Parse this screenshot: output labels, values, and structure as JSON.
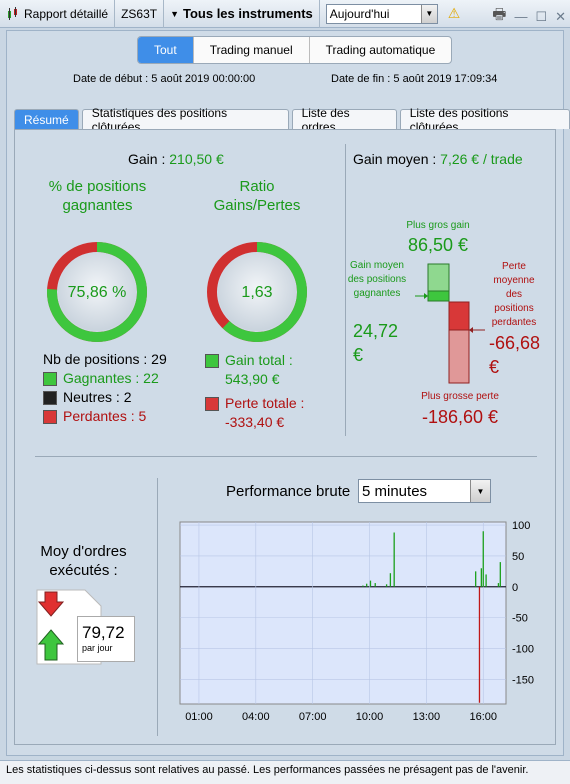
{
  "titlebar": {
    "report_label": "Rapport détaillé",
    "account": "ZS63T",
    "instruments": "Tous les instruments",
    "period_value": "Aujourd'hui"
  },
  "filter": {
    "tabs": [
      "Tout",
      "Trading manuel",
      "Trading automatique"
    ],
    "start_label": "Date de début :",
    "start_value": "5 août 2019 00:00:00",
    "end_label": "Date de fin :",
    "end_value": "5 août 2019 17:09:34"
  },
  "tabs": [
    "Résumé",
    "Statistiques des positions clôturées",
    "Liste des ordres",
    "Liste des positions clôturées"
  ],
  "summary": {
    "gain_label": "Gain :",
    "gain_value": "210,50 €",
    "pct_title": "% de positions gagnantes",
    "pct_value": "75,86 %",
    "pct_fraction": 0.7586,
    "ratio_title": "Ratio Gains/Pertes",
    "ratio_value": "1,63",
    "ratio_fraction": 0.6199,
    "positions_label": "Nb de positions : 29",
    "winners": "Gagnantes : 22",
    "neutral": "Neutres : 2",
    "losers": "Perdantes : 5",
    "total_gain_label": "Gain total :",
    "total_gain_value": "543,90 €",
    "total_loss_label": "Perte totale :",
    "total_loss_value": "-333,40 €"
  },
  "avg": {
    "title_label": "Gain moyen :",
    "title_value": "7,26 € / trade",
    "biggest_gain_label": "Plus gros gain",
    "biggest_gain_value": "86,50 €",
    "avg_gain_label": "Gain moyen des positions gagnantes",
    "avg_gain_value": "24,72 €",
    "avg_loss_label": "Perte moyenne des positions perdantes",
    "avg_loss_value": "-66,68 €",
    "biggest_loss_label": "Plus grosse perte",
    "biggest_loss_value": "-186,60 €"
  },
  "orders": {
    "title": "Moy d'ordres exécutés :",
    "value": "79,72",
    "unit": "par jour"
  },
  "performance": {
    "title": "Performance brute",
    "interval": "5 minutes"
  },
  "chart_data": {
    "type": "bar",
    "x_ticks": [
      "01:00",
      "04:00",
      "07:00",
      "10:00",
      "13:00",
      "16:00"
    ],
    "y_ticks": [
      "100",
      "50",
      "0",
      "-50",
      "-100",
      "-150"
    ],
    "ylim": [
      -190,
      105
    ],
    "xlim_hours": [
      0.0,
      17.2
    ],
    "bars": [
      {
        "t": 9.65,
        "v": 2
      },
      {
        "t": 9.85,
        "v": 5
      },
      {
        "t": 10.05,
        "v": 10
      },
      {
        "t": 10.3,
        "v": 6
      },
      {
        "t": 10.9,
        "v": 4
      },
      {
        "t": 11.1,
        "v": 22
      },
      {
        "t": 11.3,
        "v": 88
      },
      {
        "t": 15.6,
        "v": 25
      },
      {
        "t": 15.8,
        "v": -188
      },
      {
        "t": 15.9,
        "v": 30
      },
      {
        "t": 16.0,
        "v": 90
      },
      {
        "t": 16.15,
        "v": 20
      },
      {
        "t": 16.8,
        "v": 6
      },
      {
        "t": 16.9,
        "v": 40
      }
    ],
    "grid": true
  },
  "footer": {
    "disclaimer": "Les statistiques ci-dessus sont relatives au passé. Les performances passées ne présagent pas de l'avenir."
  },
  "colors": {
    "green": "#1a9a1a",
    "red": "#b01010",
    "accent": "#3f8ee8"
  }
}
